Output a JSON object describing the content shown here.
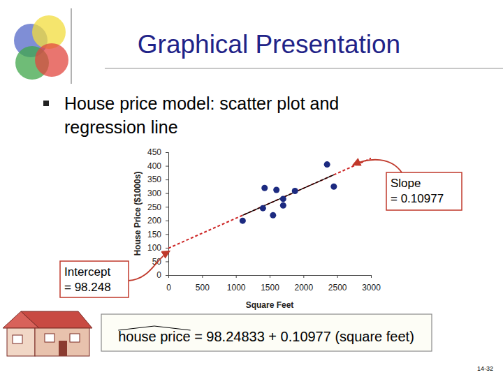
{
  "chart_data": {
    "type": "scatter",
    "title": "Graphical Presentation",
    "subtitle": "House price model:  scatter plot and regression line",
    "x_label": "Square Feet",
    "y_label": "House Price ($1000s)",
    "x": [
      1400,
      1600,
      1700,
      1875,
      1100,
      1550,
      2350,
      2450,
      1425,
      1700
    ],
    "values": [
      245,
      312,
      279,
      308,
      199,
      219,
      405,
      324,
      319,
      255
    ],
    "color": "#1c2a80",
    "marker": "circle",
    "xlim": [
      0,
      3000
    ],
    "xticks": [
      0,
      500,
      1000,
      1500,
      2000,
      2500,
      3000
    ],
    "ylim": [
      0,
      450
    ],
    "yticks": [
      0,
      50,
      100,
      150,
      200,
      250,
      300,
      350,
      400,
      450
    ],
    "grid": false,
    "regression": {
      "intercept": 98.24833,
      "slope": 0.10977
    },
    "annotations": [
      {
        "lines": [
          "Slope",
          "= 0.10977"
        ]
      },
      {
        "lines": [
          "Intercept",
          "= 98.248"
        ]
      }
    ],
    "equation": "house price = 98.24833 + 0.10977 (square feet)",
    "page_number": "14-32"
  }
}
